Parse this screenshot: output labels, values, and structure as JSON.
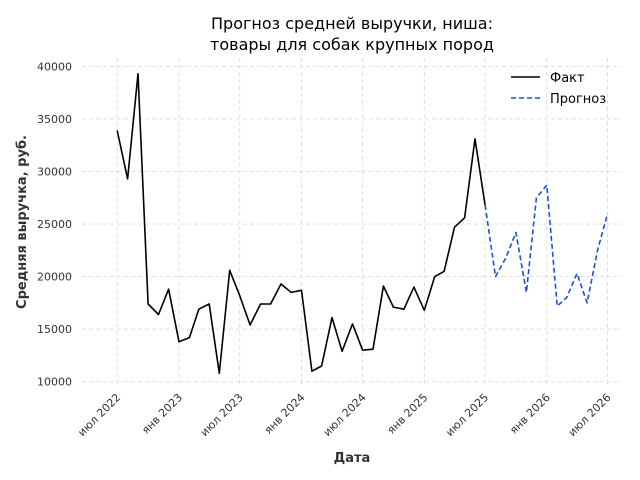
{
  "chart_data": {
    "type": "line",
    "title_lines": [
      "Прогноз средней выручки, ниша:",
      "товары для собак крупных пород"
    ],
    "xlabel": "Дата",
    "ylabel": "Средняя выручка, руб.",
    "ylim": [
      9500,
      40800
    ],
    "yticks": [
      10000,
      15000,
      20000,
      25000,
      30000,
      35000,
      40000
    ],
    "xlim": [
      "2022-03-18",
      "2026-08-13"
    ],
    "xticks": [
      {
        "date": "2022-07-01",
        "label": "июл 2022"
      },
      {
        "date": "2023-01-01",
        "label": "янв 2023"
      },
      {
        "date": "2023-07-01",
        "label": "июл 2023"
      },
      {
        "date": "2024-01-01",
        "label": "янв 2024"
      },
      {
        "date": "2024-07-01",
        "label": "июл 2024"
      },
      {
        "date": "2025-01-01",
        "label": "янв 2025"
      },
      {
        "date": "2025-07-01",
        "label": "июл 2025"
      },
      {
        "date": "2026-01-01",
        "label": "янв 2026"
      },
      {
        "date": "2026-07-01",
        "label": "июл 2026"
      }
    ],
    "grid": true,
    "legend_position": "top-right",
    "series": [
      {
        "name": "Факт",
        "color": "#000000",
        "style": "solid",
        "points": [
          [
            "2022-07-01",
            33900
          ],
          [
            "2022-08-01",
            29300
          ],
          [
            "2022-09-01",
            39300
          ],
          [
            "2022-10-01",
            17400
          ],
          [
            "2022-11-01",
            16400
          ],
          [
            "2022-12-01",
            18800
          ],
          [
            "2023-01-01",
            13800
          ],
          [
            "2023-02-01",
            14200
          ],
          [
            "2023-03-01",
            16900
          ],
          [
            "2023-04-01",
            17400
          ],
          [
            "2023-05-01",
            10800
          ],
          [
            "2023-06-01",
            20600
          ],
          [
            "2023-07-01",
            18200
          ],
          [
            "2023-08-01",
            15400
          ],
          [
            "2023-09-01",
            17400
          ],
          [
            "2023-10-01",
            17400
          ],
          [
            "2023-11-01",
            19300
          ],
          [
            "2023-12-01",
            18500
          ],
          [
            "2024-01-01",
            18700
          ],
          [
            "2024-02-01",
            11000
          ],
          [
            "2024-03-01",
            11500
          ],
          [
            "2024-04-01",
            16100
          ],
          [
            "2024-05-01",
            12900
          ],
          [
            "2024-06-01",
            15500
          ],
          [
            "2024-07-01",
            13000
          ],
          [
            "2024-08-01",
            13100
          ],
          [
            "2024-09-01",
            19100
          ],
          [
            "2024-10-01",
            17100
          ],
          [
            "2024-11-01",
            16900
          ],
          [
            "2024-12-01",
            19000
          ],
          [
            "2025-01-01",
            16800
          ],
          [
            "2025-02-01",
            20000
          ],
          [
            "2025-03-01",
            20500
          ],
          [
            "2025-04-01",
            24700
          ],
          [
            "2025-05-01",
            25600
          ],
          [
            "2025-06-01",
            33100
          ],
          [
            "2025-07-01",
            26800
          ]
        ]
      },
      {
        "name": "Прогноз",
        "color": "#1f4fd6",
        "style": "dashed",
        "points": [
          [
            "2025-07-01",
            26800
          ],
          [
            "2025-08-01",
            20000
          ],
          [
            "2025-09-01",
            21800
          ],
          [
            "2025-10-01",
            24200
          ],
          [
            "2025-11-01",
            18500
          ],
          [
            "2025-12-01",
            27500
          ],
          [
            "2026-01-01",
            28700
          ],
          [
            "2026-02-01",
            17200
          ],
          [
            "2026-03-01",
            18000
          ],
          [
            "2026-04-01",
            20300
          ],
          [
            "2026-05-01",
            17500
          ],
          [
            "2026-06-01",
            22500
          ],
          [
            "2026-07-01",
            26000
          ]
        ]
      }
    ]
  }
}
